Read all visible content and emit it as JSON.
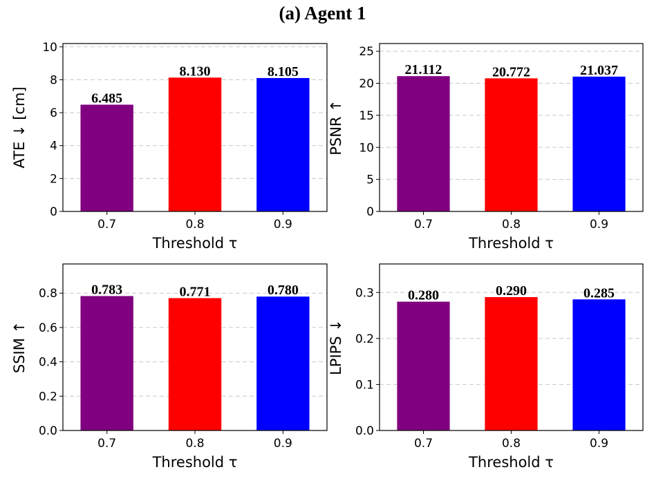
{
  "figure_title": "(a) Agent 1",
  "chart_data": [
    {
      "type": "bar",
      "id": "ate",
      "categories": [
        "0.7",
        "0.8",
        "0.9"
      ],
      "values": [
        6.485,
        8.13,
        8.105
      ],
      "value_labels": [
        "6.485",
        "8.130",
        "8.105"
      ],
      "colors": [
        "#800080",
        "#ff0000",
        "#0000ff"
      ],
      "xlabel": "Threshold τ",
      "ylabel": "ATE ↓  [cm]",
      "ylim": [
        0,
        10.2
      ],
      "yticks": [
        0,
        2,
        4,
        6,
        8,
        10
      ],
      "ytick_labels": [
        "0",
        "2",
        "4",
        "6",
        "8",
        "10"
      ],
      "grid": true
    },
    {
      "type": "bar",
      "id": "psnr",
      "categories": [
        "0.7",
        "0.8",
        "0.9"
      ],
      "values": [
        21.112,
        20.772,
        21.037
      ],
      "value_labels": [
        "21.112",
        "20.772",
        "21.037"
      ],
      "colors": [
        "#800080",
        "#ff0000",
        "#0000ff"
      ],
      "xlabel": "Threshold τ",
      "ylabel": "PSNR ↑",
      "ylim": [
        0,
        26.2
      ],
      "yticks": [
        0,
        5,
        10,
        15,
        20,
        25
      ],
      "ytick_labels": [
        "0",
        "5",
        "10",
        "15",
        "20",
        "25"
      ],
      "grid": true
    },
    {
      "type": "bar",
      "id": "ssim",
      "categories": [
        "0.7",
        "0.8",
        "0.9"
      ],
      "values": [
        0.783,
        0.771,
        0.78
      ],
      "value_labels": [
        "0.783",
        "0.771",
        "0.780"
      ],
      "colors": [
        "#800080",
        "#ff0000",
        "#0000ff"
      ],
      "xlabel": "Threshold τ",
      "ylabel": "SSIM ↑",
      "ylim": [
        0,
        0.97
      ],
      "yticks": [
        0,
        0.2,
        0.4,
        0.6,
        0.8
      ],
      "ytick_labels": [
        "0.0",
        "0.2",
        "0.4",
        "0.6",
        "0.8"
      ],
      "grid": true
    },
    {
      "type": "bar",
      "id": "lpips",
      "categories": [
        "0.7",
        "0.8",
        "0.9"
      ],
      "values": [
        0.28,
        0.29,
        0.285
      ],
      "value_labels": [
        "0.280",
        "0.290",
        "0.285"
      ],
      "colors": [
        "#800080",
        "#ff0000",
        "#0000ff"
      ],
      "xlabel": "Threshold τ",
      "ylabel": "LPIPS ↓",
      "ylim": [
        0,
        0.362
      ],
      "yticks": [
        0,
        0.1,
        0.2,
        0.3
      ],
      "ytick_labels": [
        "0.0",
        "0.1",
        "0.2",
        "0.3"
      ],
      "grid": true
    }
  ]
}
